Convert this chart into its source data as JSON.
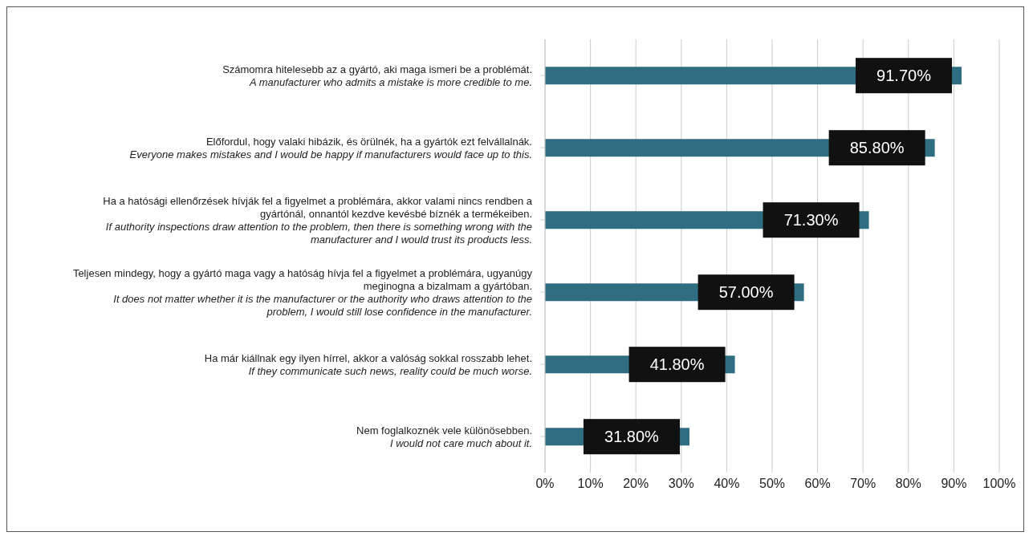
{
  "chart_data": {
    "type": "bar",
    "orientation": "horizontal",
    "categories": [
      "Számomra hitelesebb az a gyártó, aki maga ismeri be a problémát.\nA manufacturer who admits a mistake is more credible to me.",
      "Előfordul, hogy valaki hibázik, és örülnék, ha a gyártók ezt felvállalnák.\nEveryone makes mistakes and I would be happy if manufacturers would face up to this.",
      "Ha a hatósági ellenőrzések hívják fel a figyelmet a problémára, akkor valami nincs rendben a gyártónál, onnantól kezdve kevésbé bíznék a termékeiben.\nIf authority inspections draw attention to the problem, then there is something wrong with the manufacturer and I would trust its products less.",
      "Teljesen mindegy, hogy a gyártó maga vagy a hatóság hívja fel a figyelmet a problémára, ugyanúgy meginogna a bizalmam a gyártóban.\nIt does not matter whether it is the manufacturer or the authority who draws attention to the problem, I would still lose confidence in the manufacturer.",
      "Ha már kiállnak egy ilyen hírrel, akkor a valóság sokkal rosszabb lehet.\nIf they communicate such news, reality could be much worse.",
      "Nem foglalkoznék vele különösebben.\nI would not care much about it."
    ],
    "values": [
      91.7,
      85.8,
      71.3,
      57.0,
      41.8,
      31.8
    ],
    "value_labels": [
      "91.70%",
      "85.80%",
      "71.30%",
      "57.00%",
      "41.80%",
      "31.80%"
    ],
    "color": "#2e6e80",
    "xlim": [
      0,
      100
    ],
    "xticks": [
      {
        "value": 0,
        "label": "0%"
      },
      {
        "value": 10,
        "label": "10%"
      },
      {
        "value": 20,
        "label": "20%"
      },
      {
        "value": 30,
        "label": "30%"
      },
      {
        "value": 40,
        "label": "40%"
      },
      {
        "value": 50,
        "label": "50%"
      },
      {
        "value": 60,
        "label": "60%"
      },
      {
        "value": 70,
        "label": "70%"
      },
      {
        "value": 80,
        "label": "80%"
      },
      {
        "value": 90,
        "label": "90%"
      },
      {
        "value": 100,
        "label": "100%"
      }
    ],
    "grid": "x"
  }
}
